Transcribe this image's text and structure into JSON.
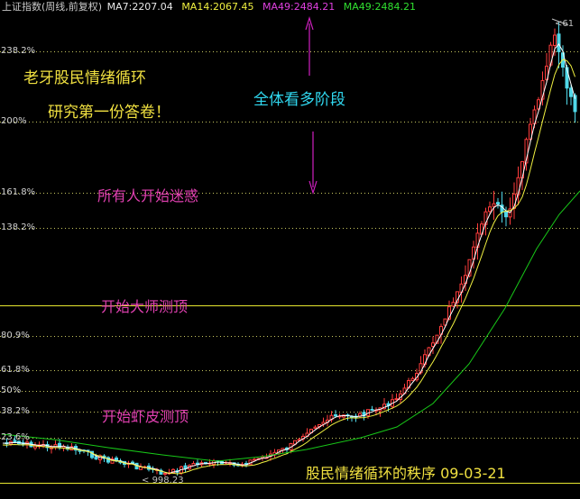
{
  "header": {
    "title": "上证指数(周线,前复权)",
    "ma7": "MA7:2207.04",
    "ma14": "MA14:2067.45",
    "ma49a": "MA49:2484.21",
    "ma49b": "MA49:2484.21"
  },
  "colors": {
    "background": "#000000",
    "up_candle": "#ff3c3c",
    "down_candle": "#50d8e8",
    "ma7": "#ffffff",
    "ma14": "#f0f040",
    "ma49": "#18c818",
    "fib_dotted": "#c8c860",
    "fib_solid": "#e8e830",
    "annotation_yellow": "#f0e040",
    "annotation_cyan": "#30d8f0",
    "annotation_magenta": "#e040b0",
    "arrow": "#d020c0"
  },
  "fib_levels": [
    {
      "label": "238.2%",
      "solid": false
    },
    {
      "label": "200%",
      "solid": false
    },
    {
      "label": "161.8%",
      "solid": false
    },
    {
      "label": "138.2%",
      "solid": false
    },
    {
      "label": "",
      "solid": true
    },
    {
      "label": "80.9%",
      "solid": false
    },
    {
      "label": "61.8%",
      "solid": false
    },
    {
      "label": "50%",
      "solid": false
    },
    {
      "label": "38.2%",
      "solid": false
    },
    {
      "label": "23.6%",
      "solid": false
    },
    {
      "label": "",
      "solid": true
    }
  ],
  "annotations": {
    "title_line1": "老牙股民情绪循环",
    "title_line2": "研究第一份答卷！",
    "bull_phase": "全体看多阶段",
    "confused": "所有人开始迷惑",
    "master_top": "开始大师测顶",
    "shrimp_top": "开始虾皮测顶",
    "footer": "股民情绪循环的秩序 09-03-21"
  },
  "low_label": "998.23",
  "peak_label": "61",
  "chart_data": {
    "type": "candlestick",
    "title": "上证指数(周线,前复权)",
    "series": [
      {
        "name": "MA7",
        "last": 2207.04
      },
      {
        "name": "MA14",
        "last": 2067.45
      },
      {
        "name": "MA49",
        "last": 2484.21
      }
    ],
    "low": 998.23,
    "ylim": [
      900,
      6200
    ],
    "grid": false
  }
}
